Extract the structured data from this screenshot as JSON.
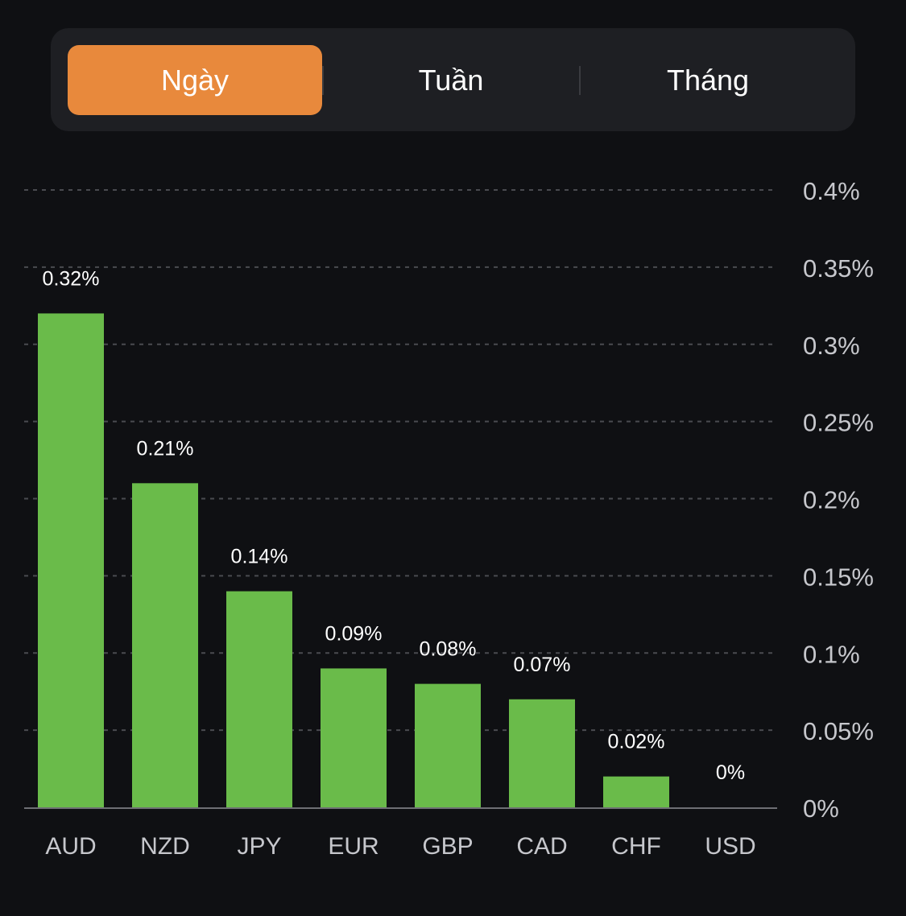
{
  "tabs": [
    {
      "label": "Ngày",
      "active": true
    },
    {
      "label": "Tuần",
      "active": false
    },
    {
      "label": "Tháng",
      "active": false
    }
  ],
  "colors": {
    "accent": "#e8893c",
    "bar": "#6abb4a",
    "grid": "#4a4b50",
    "axis_text": "#c6c7cc",
    "value_text": "#ffffff"
  },
  "chart_data": {
    "type": "bar",
    "categories": [
      "AUD",
      "NZD",
      "JPY",
      "EUR",
      "GBP",
      "CAD",
      "CHF",
      "USD"
    ],
    "values": [
      0.32,
      0.21,
      0.14,
      0.09,
      0.08,
      0.07,
      0.02,
      0
    ],
    "value_labels": [
      "0.32%",
      "0.21%",
      "0.14%",
      "0.09%",
      "0.08%",
      "0.07%",
      "0.02%",
      "0%"
    ],
    "yticks": [
      0,
      0.05,
      0.1,
      0.15,
      0.2,
      0.25,
      0.3,
      0.35,
      0.4
    ],
    "ytick_labels": [
      "0%",
      "0.05%",
      "0.1%",
      "0.15%",
      "0.2%",
      "0.25%",
      "0.3%",
      "0.35%",
      "0.4%"
    ],
    "ylim": [
      0,
      0.4
    ],
    "y_axis_position": "right",
    "grid": true,
    "grid_style": "dashed",
    "title": "",
    "xlabel": "",
    "ylabel": ""
  }
}
